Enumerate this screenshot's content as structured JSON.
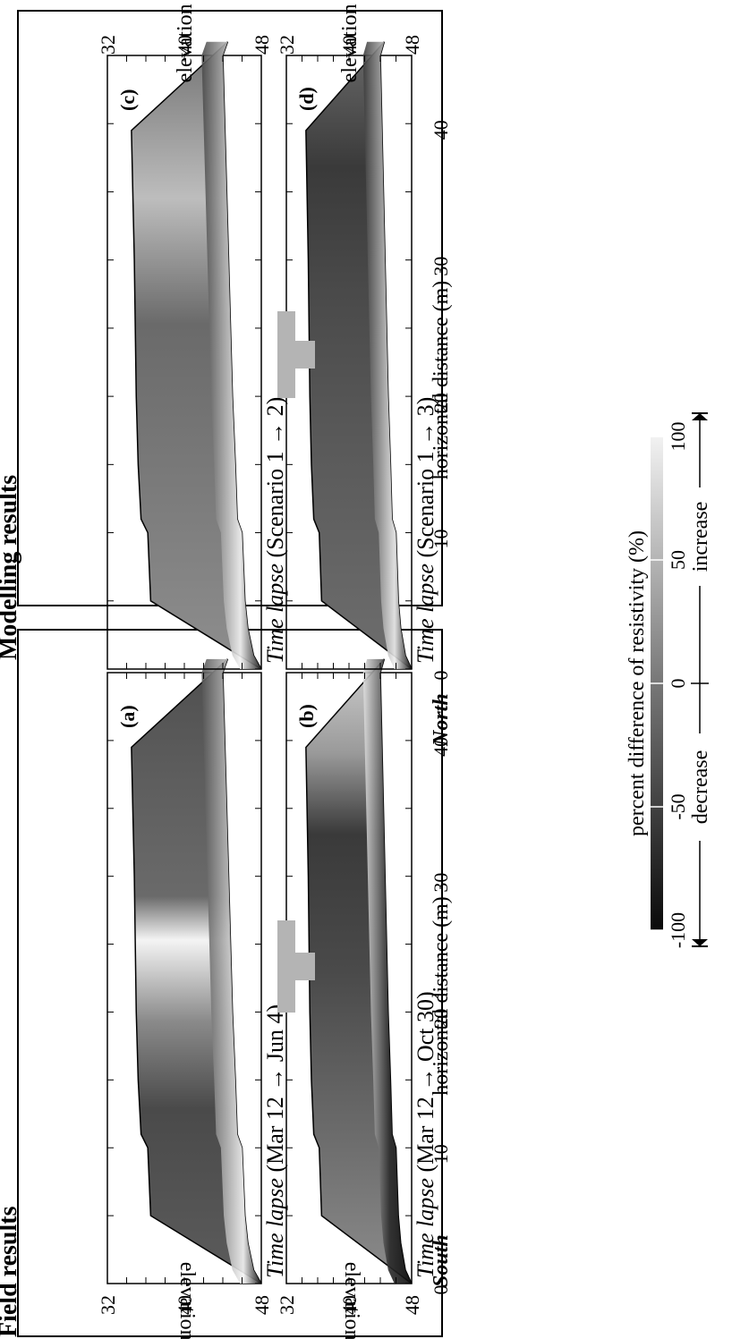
{
  "sections": {
    "field": "Field results",
    "model": "Modelling results"
  },
  "panels": [
    {
      "id": "a",
      "letter": "(a)",
      "title_em": "Time lapse",
      "title_rest": " (Mar 12 → Jun 4)"
    },
    {
      "id": "b",
      "letter": "(b)",
      "title_em": "Time lapse",
      "title_rest": " (Mar 12 → Oct 30)"
    },
    {
      "id": "c",
      "letter": "(c)",
      "title_em": "Time lapse",
      "title_rest": " (Scenario 1 → 2)"
    },
    {
      "id": "d",
      "letter": "(d)",
      "title_em": "Time lapse",
      "title_rest": " (Scenario 1 → 3)"
    }
  ],
  "axes": {
    "x_label": "horizontal distance (m)",
    "x_ticks": [
      "0",
      "10",
      "20",
      "30",
      "40"
    ],
    "y_label": "elevation (m)",
    "y_ticks": [
      "48",
      "40",
      "32"
    ]
  },
  "directions": {
    "south": "South",
    "north": "North"
  },
  "colorbar": {
    "title": "percent difference of resistivity (%)",
    "ticks": [
      "-100",
      "-50",
      "0",
      "50",
      "100"
    ],
    "decrease": "decrease",
    "increase": "increase"
  }
}
